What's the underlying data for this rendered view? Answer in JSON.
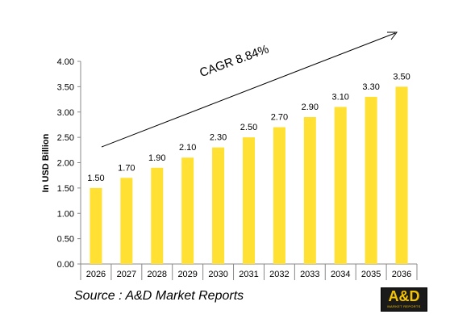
{
  "chart_data": {
    "type": "bar",
    "categories": [
      "2026",
      "2027",
      "2028",
      "2029",
      "2030",
      "2031",
      "2032",
      "2033",
      "2034",
      "2035",
      "2036"
    ],
    "values": [
      1.5,
      1.7,
      1.9,
      2.1,
      2.3,
      2.5,
      2.7,
      2.9,
      3.1,
      3.3,
      3.5
    ],
    "data_labels": [
      "1.50",
      "1.70",
      "1.90",
      "2.10",
      "2.30",
      "2.50",
      "2.70",
      "2.90",
      "3.10",
      "3.30",
      "3.50"
    ],
    "ylabel": "In USD Billion",
    "ylim": [
      0,
      4
    ],
    "yticks": [
      "0.00",
      "0.50",
      "1.00",
      "1.50",
      "2.00",
      "2.50",
      "3.00",
      "3.50",
      "4.00"
    ],
    "grid": false,
    "bar_color": "#ffe033",
    "annotation": "CAGR 8.84%"
  },
  "source": "Source : A&D Market Reports",
  "logo": {
    "text": "A&D",
    "subtext": "MARKET REPORTS",
    "colors": {
      "background": "#1a1a1a",
      "foreground": "#f5c400"
    }
  }
}
